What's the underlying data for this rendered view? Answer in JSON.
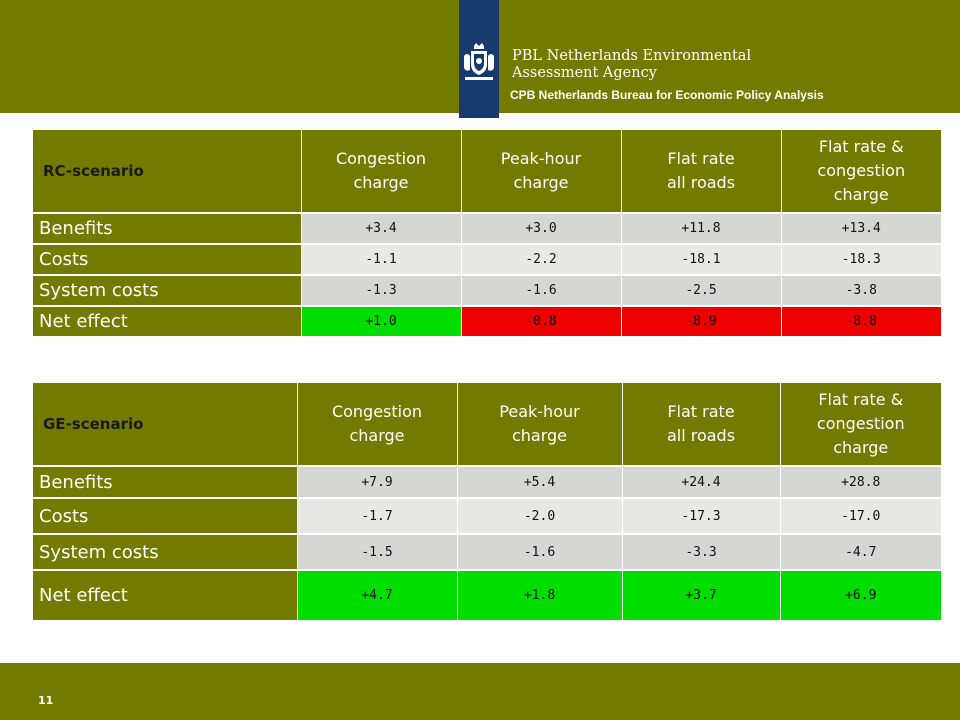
{
  "header": {
    "org_line1": "PBL Netherlands Environmental",
    "org_line2": "Assessment Agency",
    "cpb": "CPB Netherlands Bureau for Economic Policy Analysis"
  },
  "columns": [
    "Congestion charge",
    "Peak-hour charge",
    "Flat rate all roads",
    "Flat rate & congestion charge"
  ],
  "columns_lines": [
    [
      "Congestion",
      "charge"
    ],
    [
      "Peak-hour",
      "charge"
    ],
    [
      "Flat rate",
      "all roads"
    ],
    [
      "Flat rate &",
      "congestion",
      "charge"
    ]
  ],
  "rc": {
    "title": "RC-scenario",
    "rows": [
      {
        "label": "Benefits",
        "values": [
          "+3.4",
          "+3.0",
          "+11.8",
          "+13.4"
        ]
      },
      {
        "label": "Costs",
        "values": [
          "-1.1",
          "-2.2",
          "-18.1",
          "-18.3"
        ]
      },
      {
        "label": "System costs",
        "values": [
          "-1.3",
          "-1.6",
          "-2.5",
          "-3.8"
        ]
      },
      {
        "label": "Net effect",
        "values": [
          "+1.0",
          "-0.8",
          "-8.9",
          "-8.8"
        ]
      }
    ],
    "net_colors": [
      "#00dd00",
      "#ee0000",
      "#ee0000",
      "#ee0000"
    ]
  },
  "ge": {
    "title": "GE-scenario",
    "rows": [
      {
        "label": "Benefits",
        "values": [
          "+7.9",
          "+5.4",
          "+24.4",
          "+28.8"
        ]
      },
      {
        "label": "Costs",
        "values": [
          "-1.7",
          "-2.0",
          "-17.3",
          "-17.0"
        ]
      },
      {
        "label": "System costs",
        "values": [
          "-1.5",
          "-1.6",
          "-3.3",
          "-4.7"
        ]
      },
      {
        "label": "Net effect",
        "values": [
          "+4.7",
          "+1.8",
          "+3.7",
          "+6.9"
        ]
      }
    ],
    "net_colors": [
      "#00dd00",
      "#00dd00",
      "#00dd00",
      "#00dd00"
    ]
  },
  "footer": {
    "page_number": "11"
  },
  "colors": {
    "brand_olive": "#737a00",
    "logo_blue": "#153a6b"
  }
}
